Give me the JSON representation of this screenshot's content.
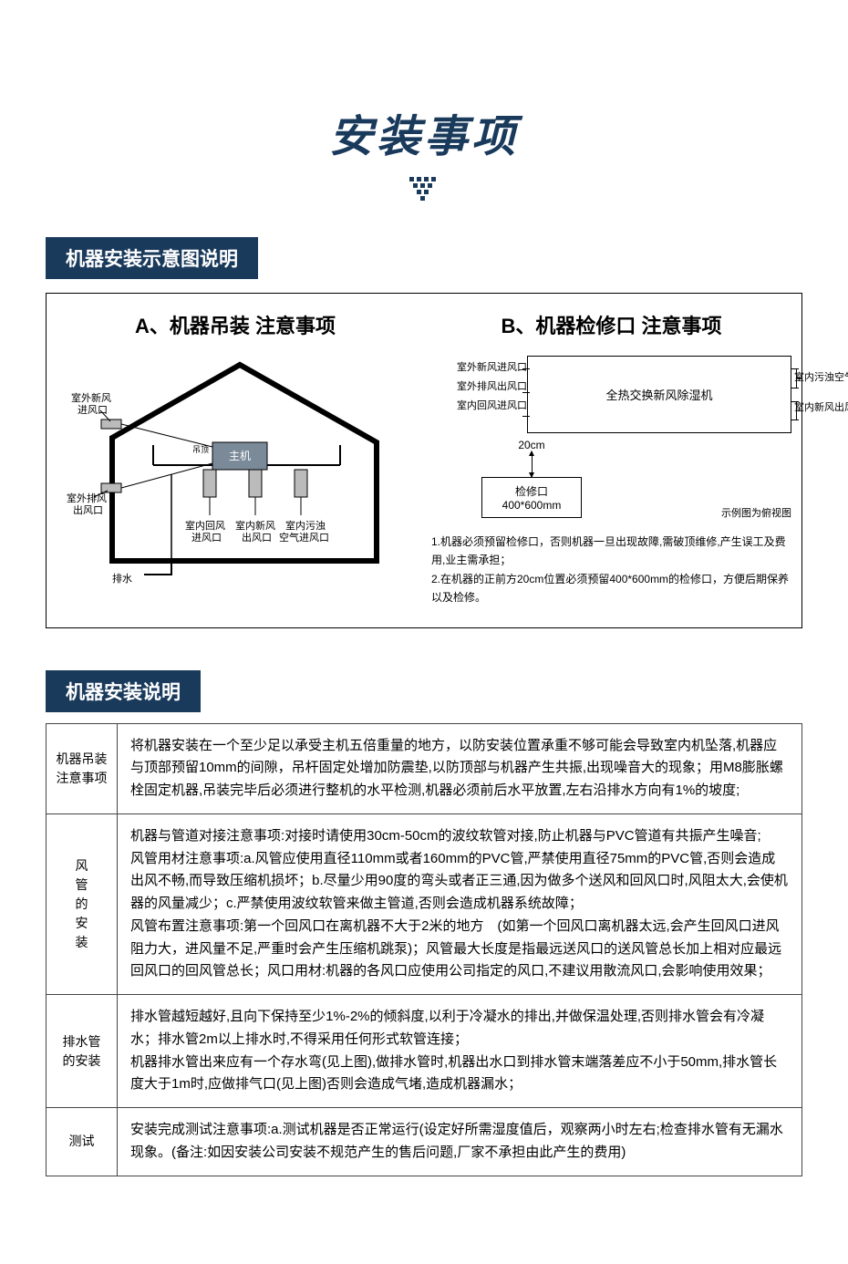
{
  "title": "安装事项",
  "section1": {
    "tag": "机器安装示意图说明"
  },
  "diagA": {
    "title": "A、机器吊装 注意事项",
    "labels": {
      "outdoor_fresh_in": "室外新风\n进风口",
      "outdoor_exhaust_out": "室外排风\n出风口",
      "drain": "排水",
      "host": "主机",
      "hang": "吊顶",
      "indoor_return_in": "室内回风\n进风口",
      "indoor_fresh_out": "室内新风\n出风口",
      "indoor_dirty_in": "室内污浊\n空气进风口"
    }
  },
  "diagB": {
    "title": "B、机器检修口 注意事项",
    "machine": "全热交换新风除湿机",
    "left_ports": [
      "室外新风进风口",
      "室外排风出风口",
      "室内回风进风口"
    ],
    "right_ports": [
      "室内污浊空气进风口",
      "室内新风出风口"
    ],
    "gap": "20cm",
    "inspect_label": "检修口",
    "inspect_size": "400*600mm",
    "caption": "示例图为俯视图",
    "note1": "1.机器必须预留检修口，否则机器一旦出现故障,需破顶维修,产生误工及费用,业主需承担；",
    "note2": "2.在机器的正前方20cm位置必须预留400*600mm的检修口，方便后期保养以及检修。"
  },
  "section2": {
    "tag": "机器安装说明"
  },
  "table": {
    "rows": [
      {
        "head": "机器吊装\n注意事项",
        "body": "将机器安装在一个至少足以承受主机五倍重量的地方，以防安装位置承重不够可能会导致室内机坠落,机器应与顶部预留10mm的间隙，吊杆固定处增加防震垫,以防顶部与机器产生共振,出现噪音大的现象；用M8膨胀螺栓固定机器,吊装完毕后必须进行整机的水平检测,机器必须前后水平放置,左右沿排水方向有1%的坡度;"
      },
      {
        "head": "风管的安装",
        "vertical": true,
        "body": "机器与管道对接注意事项:对接时请使用30cm-50cm的波纹软管对接,防止机器与PVC管道有共振产生噪音;\n风管用材注意事项:a.风管应使用直径110mm或者160mm的PVC管,严禁使用直径75mm的PVC管,否则会造成出风不畅,而导致压缩机损坏；b.尽量少用90度的弯头或者正三通,因为做多个送风和回风口时,风阻太大,会使机器的风量减少；c.严禁使用波纹软管来做主管道,否则会造成机器系统故障；\n风管布置注意事项:第一个回风口在离机器不大于2米的地方　(如第一个回风口离机器太远,会产生回风口进风阻力大，进风量不足,严重时会产生压缩机跳泵)；风管最大长度是指最远送风口的送风管总长加上相对应最远回风口的回风管总长；风口用材:机器的各风口应使用公司指定的风口,不建议用散流风口,会影响使用效果；"
      },
      {
        "head": "排水管\n的安装",
        "body": "排水管越短越好,且向下保持至少1%-2%的倾斜度,以利于冷凝水的排出,并做保温处理,否则排水管会有冷凝水；排水管2m以上排水时,不得采用任何形式软管连接；\n机器排水管出来应有一个存水弯(见上图),做排水管时,机器出水口到排水管末端落差应不小于50mm,排水管长度大于1m时,应做排气口(见上图)否则会造成气堵,造成机器漏水；"
      },
      {
        "head": "测试",
        "body": "安装完成测试注意事项:a.测试机器是否正常运行(设定好所需湿度值后，观察两小时左右;检查排水管有无漏水现象。(备注:如因安装公司安装不规范产生的售后问题,厂家不承担由此产生的费用)"
      }
    ]
  },
  "colors": {
    "brand": "#1a3a5c"
  }
}
